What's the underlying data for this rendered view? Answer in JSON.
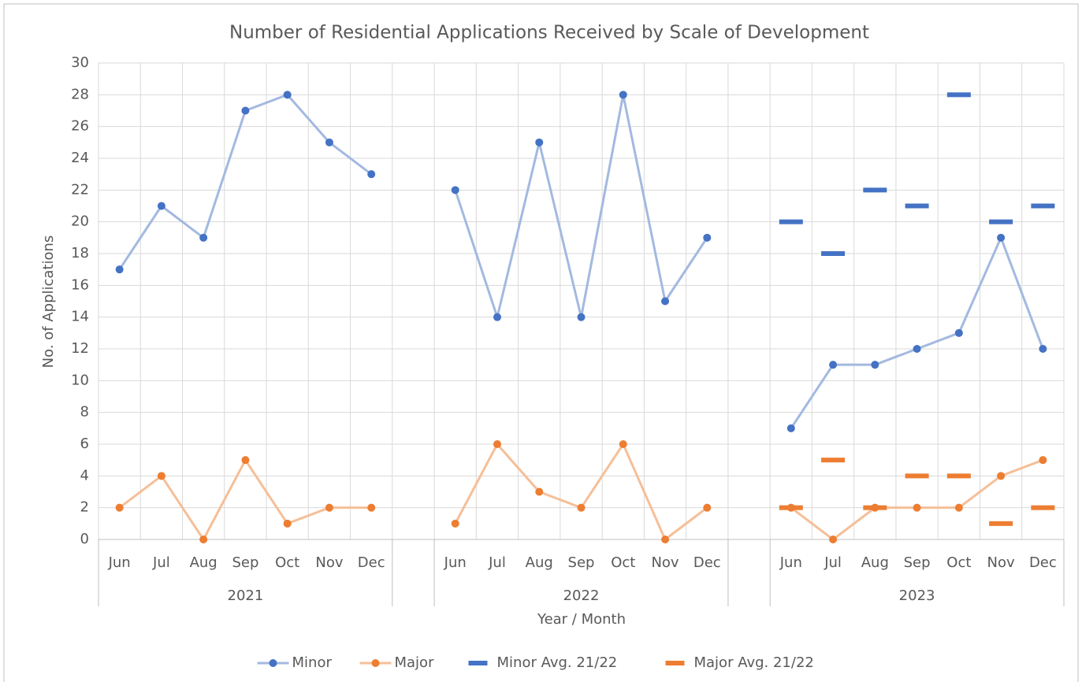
{
  "chart_data": {
    "type": "line",
    "title": "Number of Residential Applications Received by Scale of Development",
    "x_label": "Year / Month",
    "y_label": "No. of Applications",
    "categories": [
      "Jun",
      "Jul",
      "Aug",
      "Sep",
      "Oct",
      "Nov",
      "Dec",
      null,
      "Jun",
      "Jul",
      "Aug",
      "Sep",
      "Oct",
      "Nov",
      "Dec",
      null,
      "Jun",
      "Jul",
      "Aug",
      "Sep",
      "Oct",
      "Nov",
      "Dec"
    ],
    "groups": [
      "2021",
      "2022",
      "2023"
    ],
    "ylim": [
      0,
      30
    ],
    "yticks": [
      0,
      2,
      4,
      6,
      8,
      10,
      12,
      14,
      16,
      18,
      20,
      22,
      24,
      26,
      28,
      30
    ],
    "grid": true,
    "legend": "bottom",
    "series": [
      {
        "name": "Minor",
        "color": "#4472c4",
        "line_color": "#a3b9e0",
        "marker": "circle",
        "values": [
          17,
          21,
          19,
          27,
          28,
          25,
          23,
          null,
          22,
          14,
          25,
          14,
          28,
          15,
          19,
          null,
          7,
          11,
          11,
          12,
          13,
          19,
          12
        ]
      },
      {
        "name": "Major",
        "color": "#ed7d31",
        "line_color": "#f5bf98",
        "marker": "circle",
        "values": [
          2,
          4,
          0,
          5,
          1,
          2,
          2,
          null,
          1,
          6,
          3,
          2,
          6,
          0,
          2,
          null,
          2,
          0,
          2,
          2,
          2,
          4,
          5
        ]
      },
      {
        "name": "Minor Avg. 21/22",
        "color": "#4472c4",
        "marker": "dash",
        "values": [
          null,
          null,
          null,
          null,
          null,
          null,
          null,
          null,
          null,
          null,
          null,
          null,
          null,
          null,
          null,
          null,
          20,
          18,
          22,
          21,
          28,
          20,
          21
        ]
      },
      {
        "name": "Major Avg. 21/22",
        "color": "#ed7d31",
        "marker": "dash",
        "values": [
          null,
          null,
          null,
          null,
          null,
          null,
          null,
          null,
          null,
          null,
          null,
          null,
          null,
          null,
          null,
          null,
          2,
          5,
          2,
          4,
          4,
          1,
          2
        ]
      }
    ]
  }
}
